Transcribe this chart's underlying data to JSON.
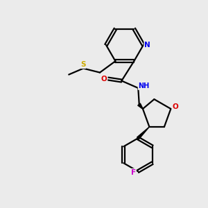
{
  "bg_color": "#ebebeb",
  "atom_colors": {
    "N": "#0000ee",
    "O": "#dd0000",
    "S": "#ccaa00",
    "F": "#cc00cc",
    "C": "#000000",
    "H": "#777777"
  },
  "figsize": [
    3.0,
    3.0
  ],
  "dpi": 100
}
